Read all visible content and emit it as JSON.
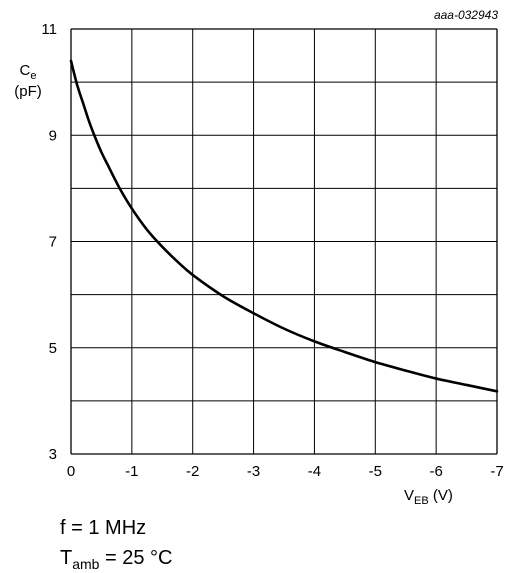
{
  "chart_data": {
    "type": "line",
    "reference_code": "aaa-032943",
    "ylabel": {
      "symbol": "C",
      "subscript": "e",
      "unit": "(pF)"
    },
    "xlabel": {
      "symbol": "V",
      "subscript": "EB",
      "unit": " (V)"
    },
    "xlim": [
      0,
      -7
    ],
    "ylim": [
      3,
      11
    ],
    "x_ticks": [
      0,
      -1,
      -2,
      -3,
      -4,
      -5,
      -6,
      -7
    ],
    "x_tick_labels": [
      "0",
      "-1",
      "-2",
      "-3",
      "-4",
      "-5",
      "-6",
      "-7"
    ],
    "y_ticks": [
      3,
      5,
      7,
      9,
      11
    ],
    "y_tick_labels": [
      "3",
      "5",
      "7",
      "9",
      "11"
    ],
    "x_grid": [
      0,
      -1,
      -2,
      -3,
      -4,
      -5,
      -6,
      -7
    ],
    "y_grid": [
      3,
      4,
      5,
      6,
      7,
      8,
      9,
      10,
      11
    ],
    "grid": true,
    "series": [
      {
        "color": "#000000",
        "x": [
          0,
          -0.1,
          -0.2,
          -0.3,
          -0.4,
          -0.5,
          -0.6,
          -0.8,
          -1.0,
          -1.25,
          -1.5,
          -1.75,
          -2.0,
          -2.5,
          -3.0,
          -3.5,
          -4.0,
          -4.5,
          -5.0,
          -5.5,
          -6.0,
          -6.5,
          -7.0
        ],
        "y": [
          10.4,
          9.95,
          9.6,
          9.25,
          8.95,
          8.68,
          8.45,
          8.0,
          7.62,
          7.22,
          6.9,
          6.62,
          6.37,
          5.97,
          5.65,
          5.36,
          5.12,
          4.92,
          4.73,
          4.57,
          4.42,
          4.3,
          4.18
        ]
      }
    ]
  },
  "conditions": {
    "line1": "f = 1 MHz",
    "line2_symbol": "T",
    "line2_subscript": "amb",
    "line2_value": " = 25 °C"
  }
}
